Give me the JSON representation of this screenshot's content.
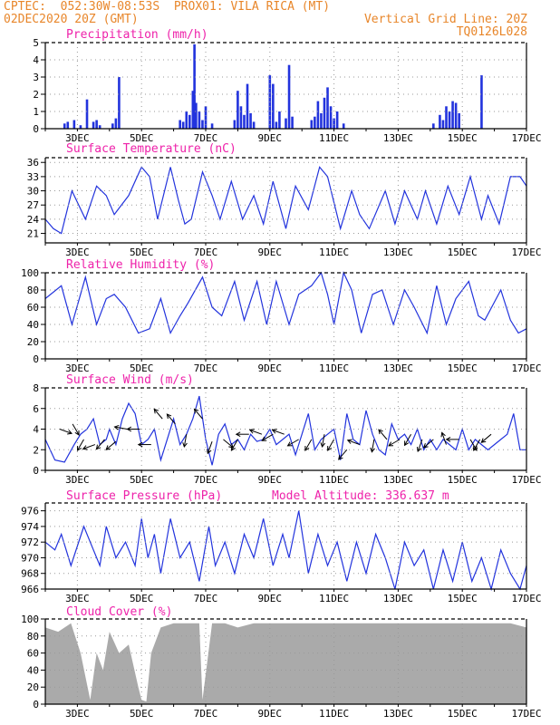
{
  "header": {
    "line1": "CPTEC:  052:30W-08:53S  PROX01: VILA RICA (MT)",
    "line2_left": "02DEC2020 20Z (GMT)",
    "line2_right": "Vertical Grid Line: 20Z",
    "line3_right": "TQ0126L028"
  },
  "colors": {
    "header": "#e8862a",
    "title": "#ee22aa",
    "series": "#2233dd",
    "cloud": "#aaaaaa",
    "grid": "#999999",
    "wind_arrow": "#000000"
  },
  "date_ticks": [
    "3DEC",
    "5DEC",
    "7DEC",
    "9DEC",
    "11DEC",
    "13DEC",
    "15DEC",
    "17DEC"
  ],
  "chart_data": [
    {
      "type": "bar",
      "title": "Precipitation (mm/h)",
      "ylim": [
        0,
        5
      ],
      "yticks": [
        "0",
        "1",
        "2",
        "3",
        "4",
        "5"
      ],
      "x": [
        2.6,
        2.7,
        2.9,
        3.1,
        3.3,
        3.5,
        3.6,
        3.7,
        4.1,
        4.2,
        4.3,
        6.2,
        6.3,
        6.4,
        6.5,
        6.6,
        6.65,
        6.7,
        6.8,
        6.9,
        7.0,
        7.2,
        7.9,
        8.0,
        8.1,
        8.2,
        8.3,
        8.4,
        8.5,
        9.0,
        9.1,
        9.2,
        9.3,
        9.5,
        9.6,
        9.7,
        10.3,
        10.4,
        10.5,
        10.6,
        10.7,
        10.8,
        10.9,
        11.0,
        11.1,
        11.3,
        14.1,
        14.3,
        14.4,
        14.5,
        14.6,
        14.7,
        14.8,
        14.9,
        15.6
      ],
      "values": [
        0.3,
        0.4,
        0.5,
        0.2,
        1.7,
        0.4,
        0.5,
        0.2,
        0.3,
        0.6,
        3.0,
        0.5,
        0.4,
        1.0,
        0.8,
        2.2,
        4.9,
        1.5,
        1.0,
        0.5,
        1.3,
        0.3,
        0.5,
        2.2,
        1.3,
        0.8,
        2.6,
        0.9,
        0.4,
        3.1,
        2.6,
        0.4,
        1.0,
        0.6,
        3.7,
        0.7,
        0.5,
        0.7,
        1.6,
        0.9,
        1.8,
        2.4,
        1.3,
        0.6,
        1.0,
        0.3,
        0.3,
        0.8,
        0.5,
        1.3,
        1.0,
        1.6,
        1.5,
        0.9,
        3.1
      ]
    },
    {
      "type": "line",
      "title": "Surface Temperature (nC)",
      "ylim": [
        19,
        37
      ],
      "yticks": [
        "21",
        "24",
        "27",
        "30",
        "33",
        "36"
      ],
      "x": [
        2.0,
        2.25,
        2.5,
        2.83,
        3.25,
        3.6,
        3.9,
        4.15,
        4.6,
        5.0,
        5.25,
        5.5,
        5.9,
        6.15,
        6.35,
        6.55,
        6.9,
        7.2,
        7.45,
        7.8,
        8.15,
        8.5,
        8.8,
        9.1,
        9.5,
        9.8,
        10.2,
        10.55,
        10.8,
        11.2,
        11.55,
        11.8,
        12.1,
        12.6,
        12.9,
        13.2,
        13.6,
        13.85,
        14.2,
        14.55,
        14.9,
        15.25,
        15.6,
        15.8,
        16.15,
        16.5,
        16.8,
        17.0
      ],
      "values": [
        24,
        22,
        21,
        30,
        24,
        31,
        29,
        25,
        29,
        35,
        33,
        24,
        35,
        28,
        23,
        24,
        34,
        29,
        24,
        32,
        24,
        29,
        23,
        32,
        22,
        31,
        26,
        35,
        33,
        22,
        30,
        25,
        22,
        30,
        23,
        30,
        24,
        30,
        23,
        31,
        25,
        33,
        24,
        29,
        23,
        33,
        33,
        31
      ]
    },
    {
      "type": "line",
      "title": "Relative Humidity (%)",
      "ylim": [
        0,
        100
      ],
      "yticks": [
        "0",
        "20",
        "40",
        "60",
        "80",
        "100"
      ],
      "x": [
        2.0,
        2.5,
        2.83,
        3.25,
        3.6,
        3.9,
        4.15,
        4.5,
        4.9,
        5.25,
        5.6,
        5.9,
        6.2,
        6.45,
        6.9,
        7.2,
        7.5,
        7.9,
        8.2,
        8.6,
        8.9,
        9.2,
        9.6,
        9.9,
        10.3,
        10.6,
        10.8,
        11.0,
        11.3,
        11.55,
        11.85,
        12.2,
        12.5,
        12.85,
        13.2,
        13.5,
        13.9,
        14.2,
        14.5,
        14.8,
        15.2,
        15.5,
        15.7,
        16.2,
        16.5,
        16.75,
        17.0
      ],
      "values": [
        70,
        85,
        40,
        95,
        40,
        70,
        75,
        60,
        30,
        35,
        70,
        30,
        50,
        65,
        95,
        60,
        50,
        90,
        45,
        90,
        40,
        90,
        40,
        75,
        85,
        100,
        75,
        40,
        100,
        80,
        30,
        75,
        80,
        40,
        80,
        60,
        30,
        85,
        40,
        70,
        90,
        50,
        45,
        80,
        45,
        30,
        35
      ]
    },
    {
      "type": "line",
      "title": "Surface Wind (m/s)",
      "ylim": [
        0,
        8
      ],
      "yticks": [
        "0",
        "2",
        "4",
        "6",
        "8"
      ],
      "x": [
        2.0,
        2.3,
        2.6,
        2.9,
        3.1,
        3.3,
        3.5,
        3.7,
        3.9,
        4.0,
        4.2,
        4.4,
        4.6,
        4.8,
        5.0,
        5.2,
        5.4,
        5.6,
        5.8,
        6.0,
        6.2,
        6.4,
        6.6,
        6.8,
        7.0,
        7.2,
        7.4,
        7.6,
        7.8,
        8.0,
        8.2,
        8.4,
        8.6,
        8.8,
        9.0,
        9.2,
        9.4,
        9.6,
        9.8,
        10.0,
        10.2,
        10.4,
        10.6,
        10.8,
        11.0,
        11.2,
        11.4,
        11.6,
        11.8,
        12.0,
        12.2,
        12.4,
        12.6,
        12.8,
        13.0,
        13.2,
        13.4,
        13.6,
        13.8,
        14.0,
        14.2,
        14.4,
        14.6,
        14.8,
        15.0,
        15.2,
        15.4,
        15.6,
        15.8,
        16.0,
        16.2,
        16.4,
        16.6,
        16.8,
        17.0
      ],
      "values": [
        3,
        1,
        0.8,
        2.5,
        3.5,
        4,
        5,
        2.5,
        3,
        4,
        2.5,
        5,
        6.5,
        5.5,
        2.5,
        3,
        4,
        1,
        3,
        5,
        2.5,
        3.5,
        5,
        7.2,
        3,
        0.5,
        3.5,
        4.5,
        2.5,
        3,
        2,
        3.5,
        2.8,
        3,
        4,
        2.5,
        3,
        3.5,
        1.5,
        3.5,
        5.5,
        2,
        3,
        3.5,
        4,
        1,
        5.5,
        3,
        2.5,
        5.8,
        3.5,
        2,
        1.5,
        4.5,
        3,
        3.5,
        2.5,
        4,
        2,
        3,
        2,
        3,
        2.5,
        2,
        4,
        2,
        3,
        2.5,
        2,
        2.5,
        3,
        3.5,
        5.5,
        2,
        2
      ]
    },
    {
      "type": "line",
      "title": "Surface Pressure (hPa)",
      "ylim": [
        966,
        977
      ],
      "yticks": [
        "966",
        "968",
        "970",
        "972",
        "974",
        "976"
      ],
      "x": [
        2.0,
        2.3,
        2.5,
        2.8,
        3.2,
        3.5,
        3.7,
        3.9,
        4.2,
        4.5,
        4.8,
        5.0,
        5.2,
        5.4,
        5.6,
        5.9,
        6.2,
        6.5,
        6.8,
        7.1,
        7.3,
        7.6,
        7.9,
        8.2,
        8.5,
        8.8,
        9.1,
        9.4,
        9.6,
        9.9,
        10.2,
        10.5,
        10.8,
        11.1,
        11.4,
        11.7,
        12.0,
        12.3,
        12.6,
        12.9,
        13.2,
        13.5,
        13.8,
        14.1,
        14.4,
        14.7,
        15.0,
        15.3,
        15.6,
        15.9,
        16.2,
        16.5,
        16.8,
        17.0
      ],
      "values": [
        972,
        971,
        973,
        969,
        974,
        971,
        969,
        974,
        970,
        972,
        969,
        975,
        970,
        973,
        968,
        975,
        970,
        972,
        967,
        974,
        969,
        972,
        968,
        973,
        970,
        975,
        969,
        973,
        970,
        976,
        968,
        973,
        969,
        972,
        967,
        972,
        968,
        973,
        970,
        966,
        972,
        969,
        971,
        966,
        971,
        967,
        972,
        967,
        970,
        966,
        971,
        968,
        966,
        969
      ]
    },
    {
      "type": "area",
      "title": "Cloud Cover (%)",
      "ylim": [
        0,
        100
      ],
      "yticks": [
        "0",
        "20",
        "40",
        "60",
        "80",
        "100"
      ],
      "x": [
        2.0,
        2.4,
        2.8,
        3.1,
        3.4,
        3.6,
        3.8,
        4.0,
        4.3,
        4.6,
        4.9,
        5.0,
        5.15,
        5.3,
        5.6,
        6.0,
        6.4,
        6.8,
        6.9,
        7.2,
        7.6,
        8.0,
        8.5,
        9.0,
        9.5,
        10.0,
        10.5,
        11.0,
        11.5,
        12.0,
        12.5,
        13.0,
        13.5,
        14.0,
        14.5,
        15.0,
        15.5,
        16.0,
        16.5,
        17.0
      ],
      "values": [
        90,
        85,
        95,
        60,
        5,
        60,
        40,
        85,
        60,
        70,
        20,
        5,
        3,
        60,
        90,
        95,
        95,
        95,
        5,
        95,
        95,
        90,
        95,
        95,
        95,
        95,
        95,
        95,
        95,
        95,
        95,
        95,
        95,
        95,
        95,
        95,
        95,
        95,
        95,
        90
      ]
    }
  ],
  "panel_extras": {
    "pressure_altitude": "Model Altitude: 336.637 m"
  },
  "wind_arrows": {
    "x": [
      2.45,
      2.85,
      3.2,
      3.55,
      3.85,
      4.2,
      4.55,
      4.95,
      5.3,
      5.65,
      6.05,
      6.4,
      6.9,
      7.2,
      7.55,
      8.0,
      8.35,
      8.75,
      9.1,
      9.45,
      9.9,
      10.3,
      10.7,
      11.0,
      11.4,
      11.8,
      12.25,
      12.65,
      13.05,
      13.4,
      13.75,
      14.1,
      14.5,
      14.9,
      15.25,
      15.55,
      15.9
    ],
    "speed": [
      4,
      4.5,
      3,
      2.5,
      3,
      2.8,
      4,
      4,
      2.5,
      5,
      4.5,
      3.5,
      5,
      2.8,
      3,
      3,
      3.5,
      3.5,
      3.5,
      3.5,
      3,
      3,
      3.5,
      3,
      2,
      2.5,
      3,
      3,
      3,
      3.5,
      3,
      3,
      2.5,
      3,
      3,
      3,
      3.5
    ],
    "direction_deg": [
      -20,
      -60,
      -120,
      -160,
      -130,
      -140,
      -190,
      -180,
      -180,
      -230,
      -230,
      -100,
      -230,
      -110,
      -40,
      -120,
      -180,
      -200,
      -150,
      -200,
      -150,
      -120,
      -100,
      -120,
      -130,
      -200,
      -100,
      -230,
      -150,
      -120,
      -110,
      -140,
      -250,
      -180,
      -60,
      -120,
      -140
    ]
  }
}
